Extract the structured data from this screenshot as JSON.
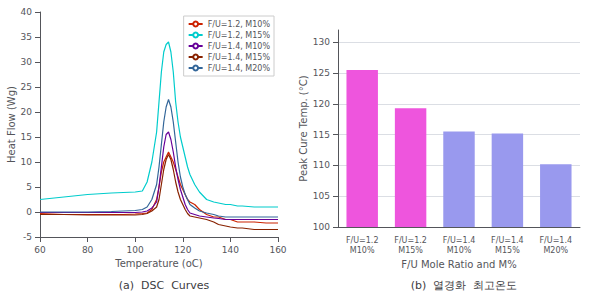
{
  "chart_data": [
    {
      "type": "line",
      "title": "(a)  DSC  Curves",
      "xlabel": "Temperature (oC)",
      "ylabel": "Heat Flow (Wg)",
      "xlim": [
        60,
        160
      ],
      "xticks": [
        60,
        80,
        100,
        120,
        140,
        160
      ],
      "ylim": [
        -5,
        40
      ],
      "yticks": [
        -5,
        0,
        5,
        10,
        15,
        20,
        25,
        30,
        35,
        40
      ],
      "grid": false,
      "legend": "upper right",
      "x": [
        60,
        70,
        80,
        90,
        95,
        100,
        103,
        105,
        107,
        109,
        110,
        111,
        112,
        113,
        114,
        115,
        116,
        117,
        118,
        119,
        120,
        121,
        122,
        123,
        125,
        127,
        130,
        133,
        135,
        138,
        140,
        143,
        145,
        150,
        155,
        160
      ],
      "series": [
        {
          "name": "F/U=1.2, M10%",
          "color": "#cc2200",
          "values": [
            -0.3,
            -0.5,
            -0.5,
            -0.5,
            -0.5,
            -0.4,
            -0.3,
            -0.2,
            0.5,
            2.5,
            5.0,
            8.0,
            10.0,
            11.0,
            12.0,
            11.0,
            10.0,
            8.5,
            7.0,
            5.5,
            4.5,
            3.5,
            2.5,
            2.0,
            1.5,
            0.5,
            -0.5,
            -1.0,
            -1.0,
            -1.5,
            -1.5,
            -2.0,
            -2.0,
            -2.0,
            -2.2,
            -2.2
          ]
        },
        {
          "name": "F/U=1.2, M15%",
          "color": "#00cccc",
          "values": [
            2.5,
            3.0,
            3.5,
            3.8,
            3.9,
            4.0,
            4.2,
            6.0,
            10.0,
            16.0,
            22.0,
            28.0,
            32.0,
            33.5,
            34.0,
            32.0,
            28.0,
            22.0,
            18.0,
            15.0,
            13.0,
            11.0,
            9.0,
            7.5,
            5.5,
            4.0,
            2.5,
            2.0,
            1.8,
            1.5,
            1.5,
            1.2,
            1.2,
            1.0,
            1.0,
            1.0
          ]
        },
        {
          "name": "F/U=1.4, M10%",
          "color": "#660099",
          "values": [
            -0.1,
            -0.1,
            -0.1,
            -0.1,
            -0.1,
            -0.1,
            0.0,
            0.2,
            0.8,
            2.0,
            5.0,
            9.0,
            13.0,
            15.5,
            16.0,
            14.5,
            12.0,
            9.0,
            6.5,
            4.5,
            3.0,
            1.5,
            0.5,
            -0.2,
            -0.5,
            -0.8,
            -1.0,
            -1.2,
            -1.3,
            -1.5,
            -1.5,
            -1.5,
            -1.5,
            -1.5,
            -1.5,
            -1.5
          ]
        },
        {
          "name": "F/U=1.4, M15%",
          "color": "#882200",
          "values": [
            -0.5,
            -0.5,
            -0.6,
            -0.6,
            -0.6,
            -0.6,
            -0.5,
            -0.3,
            0.2,
            1.0,
            2.5,
            5.5,
            8.5,
            10.5,
            11.5,
            10.5,
            8.5,
            6.0,
            4.0,
            2.5,
            1.5,
            0.5,
            -0.3,
            -0.8,
            -1.0,
            -1.2,
            -1.5,
            -2.0,
            -2.5,
            -2.8,
            -3.0,
            -3.2,
            -3.2,
            -3.5,
            -3.5,
            -3.5
          ]
        },
        {
          "name": "F/U=1.4, M20%",
          "color": "#336699",
          "values": [
            0.0,
            0.0,
            0.0,
            0.1,
            0.2,
            0.3,
            0.5,
            1.0,
            2.5,
            5.5,
            9.0,
            13.5,
            18.0,
            21.0,
            22.5,
            21.0,
            18.0,
            14.0,
            10.0,
            7.0,
            5.0,
            3.5,
            2.5,
            1.5,
            0.8,
            0.2,
            -0.2,
            -0.5,
            -0.8,
            -1.0,
            -1.0,
            -1.0,
            -1.0,
            -1.0,
            -1.0,
            -1.0
          ]
        }
      ]
    },
    {
      "type": "bar",
      "title": "(b)  열경화  최고온도",
      "xlabel": "F/U Mole Ratio and M%",
      "ylabel": "Peak Cure Temp. (°C)",
      "categories": [
        "F/U=1.2\nM10%",
        "F/U=1.2\nM15%",
        "F/U=1.4\nM10%",
        "F/U=1.4\nM15%",
        "F/U=1.4\nM20%"
      ],
      "values": [
        125.5,
        119.3,
        115.5,
        115.2,
        110.2
      ],
      "colors": [
        "#ee55dd",
        "#ee55dd",
        "#9999ee",
        "#9999ee",
        "#9999ee"
      ],
      "ylim": [
        100,
        132
      ],
      "yticks": [
        100,
        105,
        110,
        115,
        120,
        125,
        130
      ],
      "grid": true
    }
  ]
}
